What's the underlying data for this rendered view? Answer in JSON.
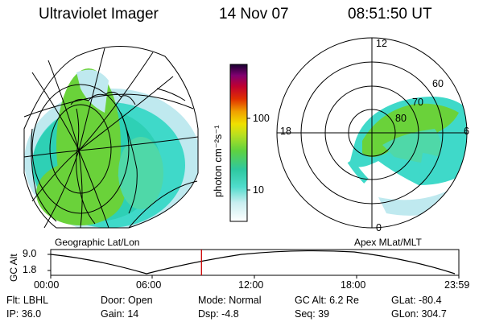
{
  "header": {
    "instrument": "Ultraviolet Imager",
    "date": "14 Nov 07",
    "time": "08:51:50 UT"
  },
  "colorbar": {
    "unit_label": "photon cm⁻²s⁻¹",
    "ticks": [
      "100",
      "10"
    ]
  },
  "left_map": {
    "label": "Geographic Lat/Lon"
  },
  "right_map": {
    "label": "Apex MLat/MLT",
    "mlt_labels": [
      "12",
      "18",
      "6",
      "0"
    ],
    "lat_labels": [
      "60",
      "70",
      "80"
    ]
  },
  "altitude_plot": {
    "ylabel": "GC Alt",
    "yticks": [
      "9.0",
      "1.8"
    ],
    "xticks": [
      "00:00",
      "06:00",
      "12:00",
      "18:00",
      "23:59"
    ],
    "current_time_hours": 8.86,
    "marker_color": "#cc0000"
  },
  "status": {
    "flt": "Flt: LBHL",
    "ip": "IP: 36.0",
    "door": "Door: Open",
    "gain": "Gain: 14",
    "mode": "Mode: Normal",
    "dsp": "Dsp:    -4.8",
    "gc_alt": "GC Alt: 6.2 Re",
    "seq": "Seq: 39",
    "glat": "GLat: -80.4",
    "glon": "GLon: 304.7"
  },
  "colors": {
    "aurora_green": "#6ad23a",
    "aurora_cyan": "#3fd9c9",
    "aurora_lightcyan": "#bfe9ef"
  }
}
